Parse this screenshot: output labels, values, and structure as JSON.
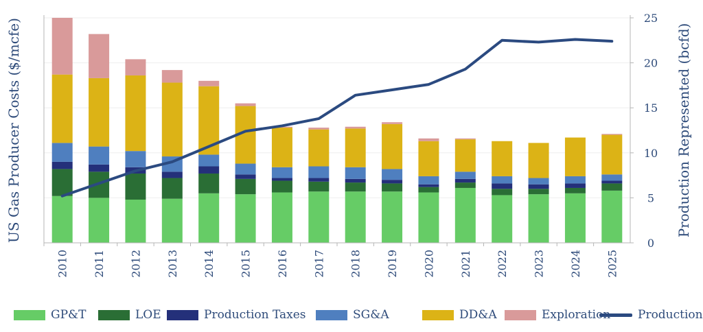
{
  "chart_data": {
    "type": "bar",
    "stacked": true,
    "categories": [
      "2010",
      "2011",
      "2012",
      "2013",
      "2014",
      "2015",
      "2016",
      "2017",
      "2018",
      "2019",
      "2020",
      "2021",
      "2022",
      "2023",
      "2024",
      "2025"
    ],
    "series": [
      {
        "name": "GP&T",
        "color": "#66cc66",
        "values": [
          5.2,
          5.0,
          4.8,
          4.9,
          5.5,
          5.4,
          5.6,
          5.7,
          5.7,
          5.7,
          5.6,
          6.1,
          5.3,
          5.4,
          5.5,
          5.8
        ]
      },
      {
        "name": "LOE",
        "color": "#2a6e35",
        "values": [
          3.0,
          2.9,
          2.9,
          2.3,
          2.2,
          1.7,
          1.3,
          1.1,
          1.0,
          0.9,
          0.6,
          0.6,
          0.7,
          0.6,
          0.6,
          0.8
        ]
      },
      {
        "name": "Production Taxes",
        "color": "#24307a",
        "values": [
          0.8,
          0.8,
          0.7,
          0.7,
          0.8,
          0.5,
          0.3,
          0.4,
          0.4,
          0.4,
          0.3,
          0.4,
          0.6,
          0.5,
          0.5,
          0.3
        ]
      },
      {
        "name": "SG&A",
        "color": "#4f7fbf",
        "values": [
          2.1,
          2.0,
          1.8,
          1.7,
          1.3,
          1.2,
          1.2,
          1.3,
          1.3,
          1.2,
          0.9,
          0.8,
          0.8,
          0.7,
          0.8,
          0.7
        ]
      },
      {
        "name": "DD&A",
        "color": "#dcb316",
        "values": [
          7.6,
          7.6,
          8.4,
          8.2,
          7.6,
          6.4,
          4.4,
          4.1,
          4.3,
          5.0,
          3.9,
          3.6,
          3.9,
          3.9,
          4.3,
          4.4
        ]
      },
      {
        "name": "Exploration",
        "color": "#d99a9a",
        "values": [
          6.3,
          4.9,
          1.8,
          1.4,
          0.6,
          0.3,
          0.1,
          0.2,
          0.2,
          0.2,
          0.3,
          0.1,
          0.0,
          0.0,
          0.0,
          0.1
        ]
      }
    ],
    "line": {
      "name": "Production",
      "color": "#2b4a80",
      "axis": "right",
      "values": [
        5.2,
        6.6,
        8.0,
        9.0,
        10.7,
        12.4,
        13.0,
        13.8,
        16.4,
        17.0,
        17.6,
        19.3,
        22.5,
        22.3,
        22.6,
        22.4
      ]
    },
    "ylabel": "US Gas Producer Costs ($/mcfe)",
    "y2label": "Production Represented (bcfd)",
    "ylim": [
      0,
      25
    ],
    "y2lim": [
      0,
      25
    ],
    "y2ticks": [
      0,
      5,
      10,
      15,
      20,
      25
    ],
    "grid": true,
    "legend_position": "bottom"
  }
}
